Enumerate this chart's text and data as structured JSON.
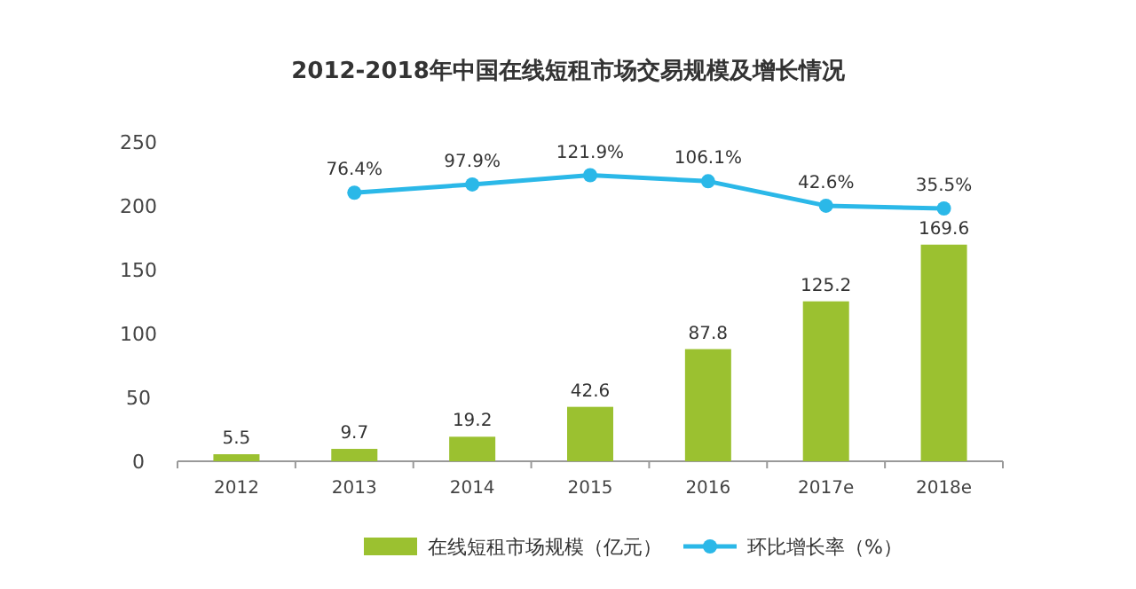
{
  "chart_data": {
    "type": "bar",
    "title": "2012-2018年中国在线短租市场交易规模及增长情况",
    "categories": [
      "2012",
      "2013",
      "2014",
      "2015",
      "2016",
      "2017e",
      "2018e"
    ],
    "series": [
      {
        "name": "在线短租市场规模（亿元）",
        "color": "#9bc130",
        "values": [
          5.5,
          9.7,
          19.2,
          42.6,
          87.8,
          125.2,
          169.6
        ]
      },
      {
        "name": "环比增长率（%）",
        "type": "line",
        "axis": "y2",
        "color": "#2bb8e8",
        "values": [
          null,
          76.4,
          97.9,
          121.9,
          106.1,
          42.6,
          35.5
        ],
        "value_labels": [
          null,
          "76.4%",
          "97.9%",
          "121.9%",
          "106.1%",
          "42.6%",
          "35.5%"
        ]
      }
    ],
    "ylim": [
      0,
      250
    ],
    "yticks": [
      0,
      50,
      100,
      150,
      200,
      250
    ],
    "data_labels": true,
    "legend": "bottom",
    "marker": "circle"
  }
}
